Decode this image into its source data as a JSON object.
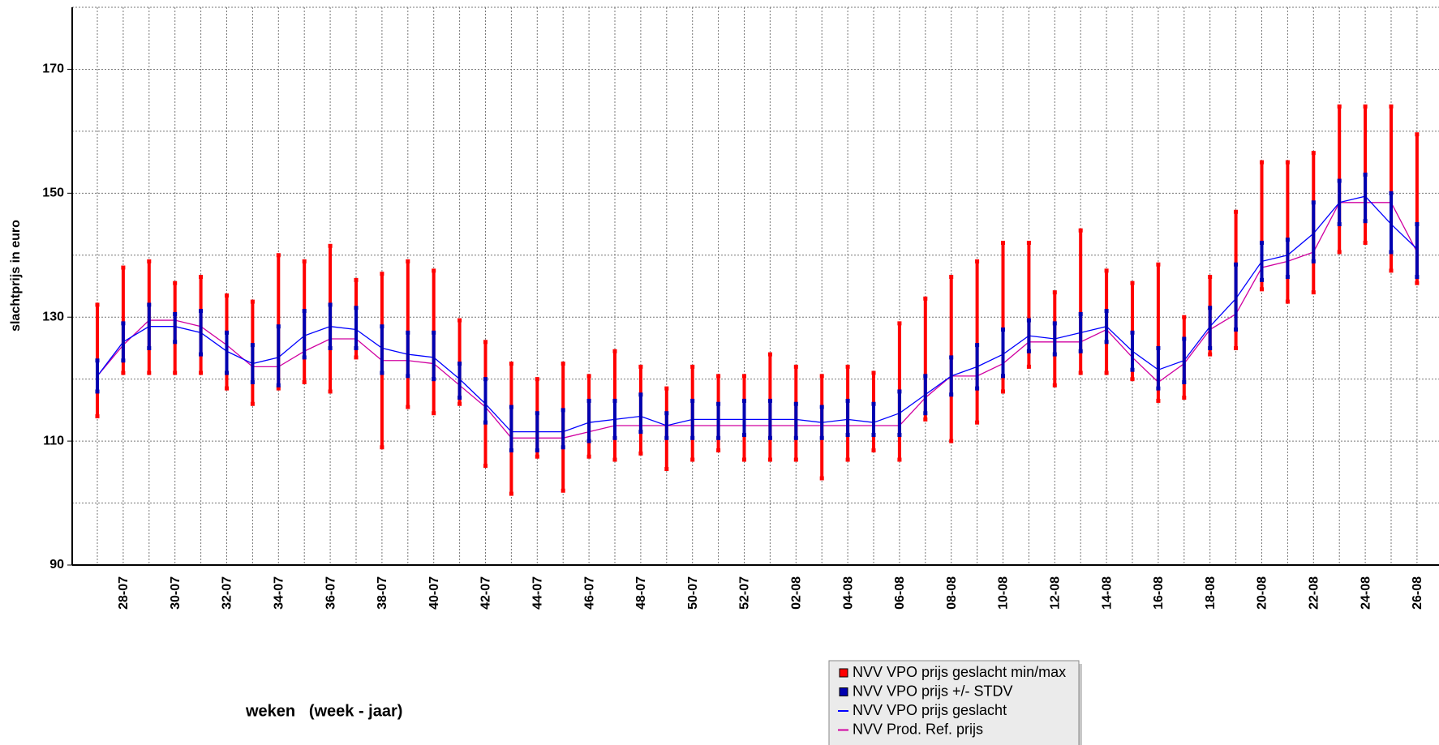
{
  "chart_data": {
    "type": "errorbar-line",
    "y_label": "slachtprijs in euro",
    "x_label": "weken   (week - jaar)",
    "categories": [
      null,
      "28-07",
      null,
      "30-07",
      null,
      "32-07",
      null,
      "34-07",
      null,
      "36-07",
      null,
      "38-07",
      null,
      "40-07",
      null,
      "42-07",
      null,
      "44-07",
      null,
      "46-07",
      null,
      "48-07",
      null,
      "50-07",
      null,
      "52-07",
      null,
      "02-08",
      null,
      "04-08",
      null,
      "06-08",
      null,
      "08-08",
      null,
      "10-08",
      null,
      "12-08",
      null,
      "14-08",
      null,
      "16-08",
      null,
      "18-08",
      null,
      "20-08",
      null,
      "22-08",
      null,
      "24-08",
      null,
      "26-08"
    ],
    "ylim": [
      90,
      180
    ],
    "yticks": [
      90,
      110,
      130,
      150,
      170
    ],
    "y_minor_ticks": [
      100,
      120,
      140,
      160,
      180
    ],
    "grid": true,
    "legend": "bottom",
    "series": [
      {
        "name": "NVV VPO prijs geslacht min/max",
        "type": "range",
        "color": "#ff0000",
        "low": [
          114,
          121,
          121,
          121,
          121,
          118.5,
          116,
          118.5,
          119.5,
          118,
          123.5,
          109,
          115.5,
          114.5,
          116,
          106,
          101.5,
          107.5,
          102,
          107.5,
          107,
          108,
          105.5,
          107,
          108.5,
          107,
          107,
          107,
          104,
          107,
          108.5,
          107,
          113.5,
          110,
          113,
          118,
          122,
          119,
          121,
          121,
          120,
          116.5,
          117,
          124,
          125,
          134.5,
          132.5,
          134,
          140.5,
          142,
          137.5,
          135.5
        ],
        "high": [
          132,
          138,
          139,
          135.5,
          136.5,
          133.5,
          132.5,
          140,
          139,
          141.5,
          136,
          137,
          139,
          137.5,
          129.5,
          126,
          122.5,
          120,
          122.5,
          120.5,
          124.5,
          122,
          118.5,
          122,
          120.5,
          120.5,
          124,
          122,
          120.5,
          122,
          121,
          129,
          133,
          136.5,
          139,
          142,
          142,
          134,
          144,
          137.5,
          135.5,
          138.5,
          130,
          136.5,
          147,
          155,
          155,
          156.5,
          164,
          164,
          164,
          159.5
        ]
      },
      {
        "name": "NVV VPO prijs +/- STDV",
        "type": "range",
        "color": "#0000b0",
        "low": [
          118,
          123,
          125,
          126,
          124,
          121,
          119.5,
          119,
          123.5,
          125,
          125,
          121,
          120.5,
          120,
          117,
          113,
          108.5,
          108.5,
          109,
          110,
          110.5,
          111.5,
          110.5,
          110.5,
          110.5,
          111,
          110.5,
          110.5,
          110.5,
          111,
          111,
          111,
          114.5,
          117.5,
          118.5,
          120.5,
          124.5,
          124,
          124.5,
          126,
          121.5,
          118.5,
          119.5,
          125,
          128,
          136,
          136.5,
          139,
          145,
          145.5,
          140.5,
          136.5
        ],
        "high": [
          123,
          129,
          132,
          130.5,
          131,
          127.5,
          125.5,
          128.5,
          131,
          132,
          131.5,
          128.5,
          127.5,
          127.5,
          122.5,
          120,
          115.5,
          114.5,
          115,
          116.5,
          116.5,
          117.5,
          114.5,
          116.5,
          116,
          116.5,
          116.5,
          116,
          115.5,
          116.5,
          116,
          118,
          120.5,
          123.5,
          125.5,
          128,
          129.5,
          129,
          130.5,
          131,
          127.5,
          125,
          126.5,
          131.5,
          138.5,
          142,
          142.5,
          148.5,
          152,
          153,
          150,
          145
        ]
      },
      {
        "name": "NVV VPO prijs geslacht",
        "type": "line",
        "color": "#0000ff",
        "values": [
          120.5,
          126,
          128.5,
          128.5,
          127.5,
          124.5,
          122.5,
          123.5,
          127,
          128.5,
          128,
          125,
          124,
          123.5,
          120,
          116,
          111.5,
          111.5,
          111.5,
          113,
          113.5,
          114,
          112.5,
          113.5,
          113.5,
          113.5,
          113.5,
          113.5,
          113,
          113.5,
          113,
          114.5,
          117.5,
          120.5,
          122,
          124,
          127,
          126.5,
          127.5,
          128.5,
          124.5,
          121.5,
          123,
          128.5,
          133,
          139,
          140,
          143.5,
          148.5,
          149.5,
          145,
          141
        ]
      },
      {
        "name": "NVV Prod. Ref. prijs",
        "type": "line",
        "color": "#d000a0",
        "values": [
          120.5,
          125.5,
          129.5,
          129.5,
          128.5,
          125.5,
          122,
          122,
          124.5,
          126.5,
          126.5,
          123,
          123,
          122.5,
          119,
          115.5,
          110.5,
          110.5,
          110.5,
          111.5,
          112.5,
          112.5,
          112.5,
          112.5,
          112.5,
          112.5,
          112.5,
          112.5,
          112.5,
          112.5,
          112.5,
          112.5,
          117,
          120.5,
          120.5,
          122.5,
          126,
          126,
          126,
          128,
          123.5,
          119.5,
          122.5,
          128,
          130.5,
          138,
          139,
          140.5,
          148.5,
          148.5,
          148.5,
          140.5
        ]
      }
    ]
  }
}
